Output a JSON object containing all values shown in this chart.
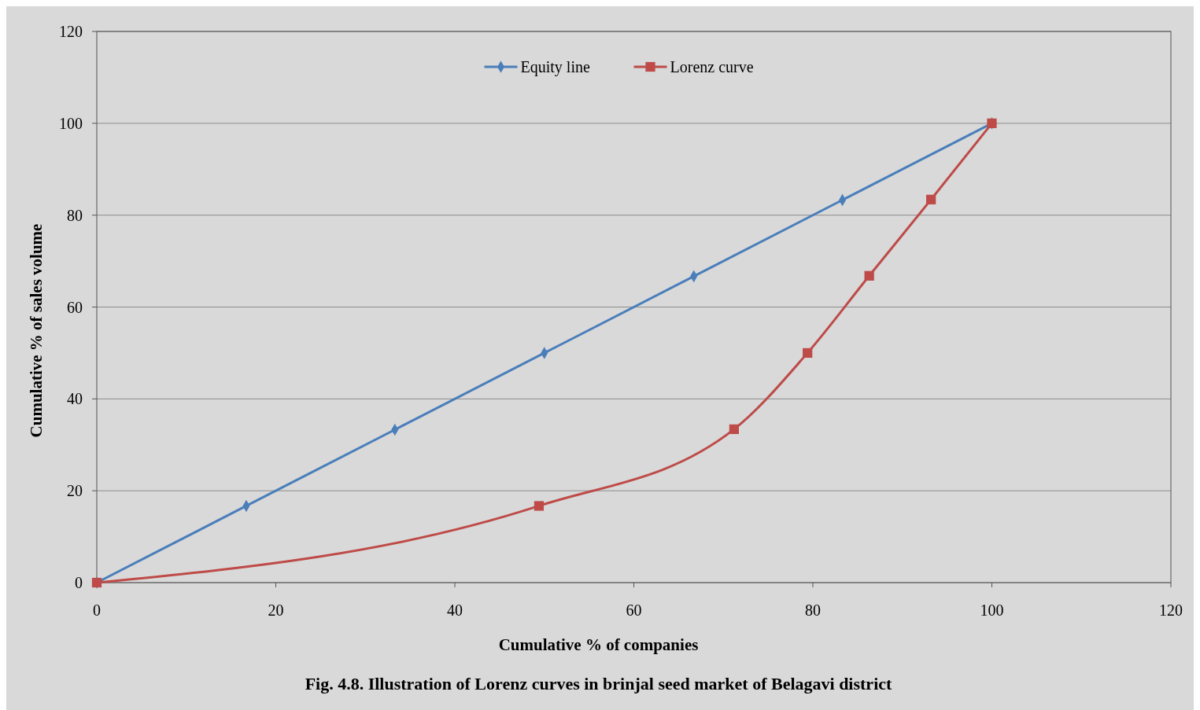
{
  "chart_data": {
    "type": "line",
    "xlabel": "Cumulative % of companies",
    "ylabel": "Cumulative % of sales volume",
    "annotations": [
      "Fig. 4.8. Illustration of Lorenz curves in brinjal seed market of Belagavi district"
    ],
    "xlim": [
      0,
      120
    ],
    "xticks": [
      0,
      20,
      40,
      60,
      80,
      100,
      120
    ],
    "ylim": [
      0,
      120
    ],
    "yticks": [
      0,
      20,
      40,
      60,
      80,
      100,
      120
    ],
    "grid": "y",
    "legend": "top",
    "series": [
      {
        "name": "Equity line",
        "color": "#4a7ebb",
        "marker": "diamond",
        "x": [
          0,
          16.7,
          33.3,
          50,
          66.7,
          83.3,
          100
        ],
        "values": [
          0,
          16.7,
          33.3,
          50,
          66.7,
          83.3,
          100
        ]
      },
      {
        "name": "Lorenz curve",
        "color": "#be4b48",
        "marker": "square",
        "x": [
          0,
          49.4,
          71.2,
          79.4,
          86.3,
          93.2,
          100
        ],
        "values": [
          0,
          16.7,
          33.4,
          50,
          66.8,
          83.4,
          100
        ]
      }
    ]
  }
}
